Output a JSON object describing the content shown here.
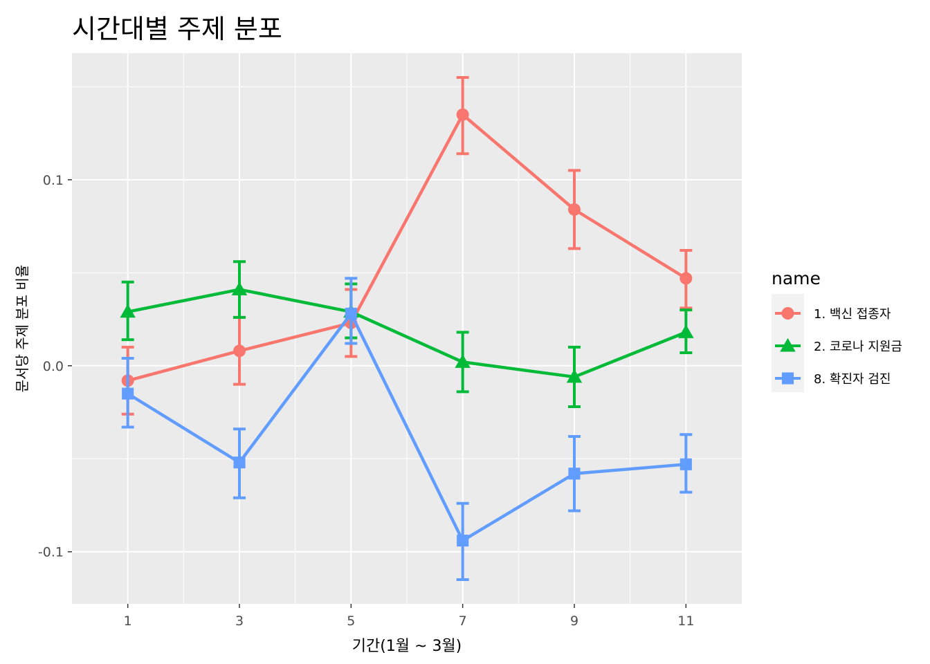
{
  "chart_data": {
    "type": "line",
    "title": "시간대별 주제 분포",
    "xlabel": "기간(1월 ~ 3월)",
    "ylabel": "문서당 주제 분포 비율",
    "x": [
      1,
      3,
      5,
      7,
      9,
      11
    ],
    "xlim": [
      0,
      12
    ],
    "ylim": [
      -0.128,
      0.168
    ],
    "x_ticks": [
      1,
      3,
      5,
      7,
      9,
      11
    ],
    "y_ticks": [
      -0.1,
      0.0,
      0.1
    ],
    "y_tick_labels": [
      "-0.1",
      "0.0",
      "0.1"
    ],
    "grid": true,
    "legend": {
      "title": "name",
      "position": "right"
    },
    "series": [
      {
        "name": "1. 백신 접종자",
        "color": "#f8766d",
        "marker": "circle",
        "values": [
          -0.008,
          0.008,
          0.023,
          0.135,
          0.084,
          0.047
        ],
        "lower": [
          -0.026,
          -0.01,
          0.005,
          0.114,
          0.063,
          0.031
        ],
        "upper": [
          0.01,
          0.026,
          0.041,
          0.155,
          0.105,
          0.062
        ]
      },
      {
        "name": "2. 코로나 지원금",
        "color": "#00ba38",
        "marker": "triangle",
        "values": [
          0.029,
          0.041,
          0.029,
          0.002,
          -0.006,
          0.018
        ],
        "lower": [
          0.014,
          0.026,
          0.015,
          -0.014,
          -0.022,
          0.007
        ],
        "upper": [
          0.045,
          0.056,
          0.044,
          0.018,
          0.01,
          0.03
        ]
      },
      {
        "name": "8. 확진자 검진",
        "color": "#619cff",
        "marker": "square",
        "values": [
          -0.015,
          -0.052,
          0.028,
          -0.094,
          -0.058,
          -0.053
        ],
        "lower": [
          -0.033,
          -0.071,
          0.012,
          -0.115,
          -0.078,
          -0.068
        ],
        "upper": [
          0.004,
          -0.034,
          0.047,
          -0.074,
          -0.038,
          -0.037
        ]
      }
    ]
  }
}
